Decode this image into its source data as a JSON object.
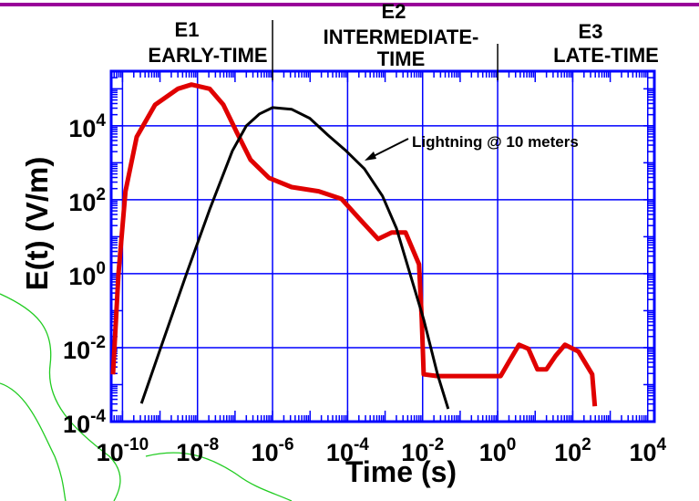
{
  "chart_data": {
    "type": "line",
    "xlabel": "Time (s)",
    "ylabel": "E(t) (V/m)",
    "xscale": "log",
    "yscale": "log",
    "xlim": [
      5e-11,
      15000
    ],
    "ylim": [
      0.0001,
      300000
    ],
    "grid": true,
    "xticks": [
      {
        "value": 1e-10,
        "label": {
          "base": "10",
          "exponent": "-10"
        }
      },
      {
        "value": 1e-08,
        "label": {
          "base": "10",
          "exponent": "-8"
        }
      },
      {
        "value": 1e-06,
        "label": {
          "base": "10",
          "exponent": "-6"
        }
      },
      {
        "value": 0.0001,
        "label": {
          "base": "10",
          "exponent": "-4"
        }
      },
      {
        "value": 0.01,
        "label": {
          "base": "10",
          "exponent": "-2"
        }
      },
      {
        "value": 1,
        "label": {
          "base": "10",
          "exponent": "0"
        }
      },
      {
        "value": 100,
        "label": {
          "base": "10",
          "exponent": "2"
        }
      },
      {
        "value": 10000,
        "label": {
          "base": "10",
          "exponent": "4"
        }
      }
    ],
    "yticks": [
      {
        "value": 0.0001,
        "label": {
          "base": "10",
          "exponent": "-4"
        }
      },
      {
        "value": 0.01,
        "label": {
          "base": "10",
          "exponent": "-2"
        }
      },
      {
        "value": 1,
        "label": {
          "base": "10",
          "exponent": "0"
        }
      },
      {
        "value": 100,
        "label": {
          "base": "10",
          "exponent": "2"
        }
      },
      {
        "value": 10000,
        "label": {
          "base": "10",
          "exponent": "4"
        }
      }
    ],
    "regions": [
      {
        "label": "E1",
        "sublabel": [
          "EARLY-TIME"
        ]
      },
      {
        "label": "E2",
        "sublabel": [
          "INTERMEDIATE-",
          "TIME"
        ]
      },
      {
        "label": "E3",
        "sublabel": [
          "LATE-TIME"
        ]
      }
    ],
    "region_bounds": [
      1e-06,
      1
    ],
    "series": [
      {
        "color": "#e00000",
        "x": [
          5.6e-11,
          7.8e-11,
          1.2e-10,
          2.4e-10,
          7.4e-10,
          3e-09,
          6.9e-09,
          2.1e-08,
          4.9e-08,
          1.1e-07,
          2.6e-07,
          8e-07,
          3.2e-06,
          1.7e-05,
          6.9e-05,
          0.00021,
          0.00065,
          0.0015,
          0.0035,
          0.008,
          0.0095,
          0.0107,
          0.025,
          1.2,
          2.1,
          3.7,
          6.6,
          11.5,
          20,
          35,
          62,
          141,
          330,
          390
        ],
        "values": [
          0.0019,
          1,
          170,
          5000,
          37000,
          100000,
          130000,
          100000,
          37000,
          6800,
          1200,
          390,
          220,
          170,
          105,
          30,
          8.7,
          13,
          13,
          1.8,
          0.058,
          0.0019,
          0.0017,
          0.0017,
          0.0045,
          0.012,
          0.0093,
          0.0026,
          0.0026,
          0.006,
          0.012,
          0.0079,
          0.0019,
          0.00026
        ]
      },
      {
        "name": "Lightning @ 10 meters",
        "color": "#000000",
        "x": [
          3.2e-10,
          1.3e-09,
          5.1e-09,
          2.1e-08,
          8.5e-08,
          2e-07,
          4.5e-07,
          1e-06,
          3.2e-06,
          9.8e-06,
          3e-05,
          9.1e-05,
          0.00028,
          0.00085,
          0.002,
          0.0046,
          0.0107,
          0.025,
          0.048
        ],
        "values": [
          0.00031,
          0.019,
          1,
          54,
          2100,
          10000,
          21000,
          31000,
          28000,
          16000,
          5600,
          2100,
          690,
          126,
          17,
          1,
          0.058,
          0.0019,
          0.00022
        ]
      }
    ]
  }
}
